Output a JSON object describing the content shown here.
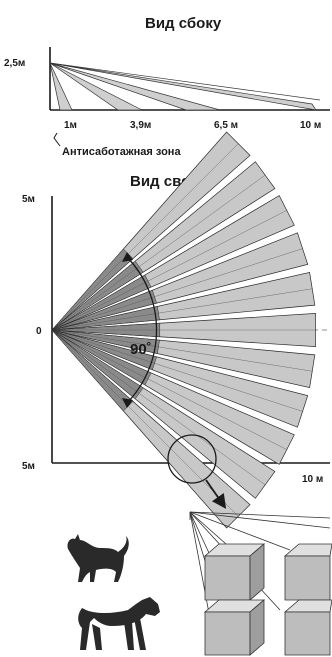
{
  "side_view": {
    "title": "Вид сбоку",
    "height_label": "2,5м",
    "distance_ticks": [
      "1м",
      "3,9м",
      "6,5 м",
      "10 м"
    ],
    "anti_sabotage_label": "Антисаботажная зона"
  },
  "top_view": {
    "title": "Вид сверху",
    "y_top_label": "5м",
    "y_center_label": "0",
    "y_bottom_label": "5м",
    "x_end_label": "10 м",
    "angle_label": "90˚",
    "beam_count": 11
  },
  "detail": {
    "animals": [
      "cat-icon",
      "dog-icon"
    ]
  },
  "colors": {
    "beam_fill": "#c8c8c8",
    "beam_stroke": "#2a2a2a",
    "block_fill": "#bdbdbd"
  }
}
